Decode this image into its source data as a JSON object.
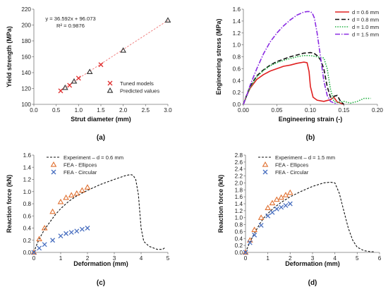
{
  "chart_data": [
    {
      "id": "a",
      "type": "scatter",
      "panel_label": "(a)",
      "xlabel": "Strut diameter (mm)",
      "ylabel": "Yield strength (MPa)",
      "xlim": [
        0,
        3
      ],
      "ylim": [
        100,
        220
      ],
      "xticks": [
        0,
        0.5,
        1,
        1.5,
        2,
        2.5,
        3
      ],
      "yticks": [
        100,
        120,
        140,
        160,
        180,
        200,
        220
      ],
      "grid": false,
      "legend": "bottom-right",
      "annotations": [
        "y = 36.592x + 96.073",
        "R² = 0.9876"
      ],
      "trendline": {
        "slope": 36.592,
        "intercept": 96.073,
        "x_range": [
          0.6,
          3
        ],
        "color": "#f08080"
      },
      "series": [
        {
          "name": "Tuned models",
          "marker": "x",
          "color": "#e03030",
          "x": [
            0.6,
            0.8,
            1.0,
            1.5
          ],
          "y": [
            117,
            124,
            133,
            150
          ]
        },
        {
          "name": "Predicted values",
          "marker": "triangle",
          "color": "#333333",
          "x": [
            0.7,
            0.9,
            1.25,
            2.0,
            3.0
          ],
          "y": [
            121,
            129,
            141,
            168,
            206
          ]
        }
      ]
    },
    {
      "id": "b",
      "type": "line",
      "panel_label": "(b)",
      "xlabel": "Engineering strain (-)",
      "ylabel": "Engineering stress (MPa)",
      "xlim": [
        0,
        0.2
      ],
      "ylim": [
        0,
        1.6
      ],
      "xticks": [
        0,
        0.05,
        0.1,
        0.15,
        0.2
      ],
      "yticks": [
        0,
        0.2,
        0.4,
        0.6,
        0.8,
        1.0,
        1.2,
        1.4,
        1.6
      ],
      "grid": false,
      "legend": "top-right",
      "series": [
        {
          "name": "d = 0.6 mm",
          "color": "#e02020",
          "dash": "solid",
          "x": [
            0,
            0.005,
            0.01,
            0.02,
            0.03,
            0.04,
            0.05,
            0.06,
            0.07,
            0.08,
            0.09,
            0.095,
            0.098,
            0.1,
            0.104,
            0.11,
            0.12,
            0.13,
            0.135,
            0.14,
            0.15
          ],
          "y": [
            0,
            0.15,
            0.27,
            0.42,
            0.5,
            0.56,
            0.6,
            0.64,
            0.66,
            0.69,
            0.71,
            0.7,
            0.55,
            0.3,
            0.12,
            0.07,
            0.05,
            0.08,
            0.12,
            0.04,
            0.0
          ]
        },
        {
          "name": "d = 0.8 mm",
          "color": "#111111",
          "dash": "long-dash",
          "x": [
            0,
            0.005,
            0.01,
            0.02,
            0.03,
            0.04,
            0.05,
            0.06,
            0.07,
            0.08,
            0.09,
            0.1,
            0.105,
            0.11,
            0.115,
            0.12,
            0.125,
            0.13,
            0.14,
            0.145,
            0.15
          ],
          "y": [
            0,
            0.16,
            0.3,
            0.48,
            0.58,
            0.66,
            0.72,
            0.76,
            0.8,
            0.83,
            0.86,
            0.87,
            0.86,
            0.82,
            0.75,
            0.6,
            0.3,
            0.12,
            0.15,
            0.05,
            0.0
          ]
        },
        {
          "name": "d = 1.0 mm",
          "color": "#20b040",
          "dash": "dot",
          "x": [
            0,
            0.005,
            0.01,
            0.02,
            0.03,
            0.04,
            0.05,
            0.06,
            0.07,
            0.08,
            0.09,
            0.1,
            0.11,
            0.12,
            0.125,
            0.13,
            0.135,
            0.14,
            0.15,
            0.16,
            0.17,
            0.18,
            0.19
          ],
          "y": [
            0,
            0.14,
            0.28,
            0.46,
            0.57,
            0.65,
            0.7,
            0.74,
            0.77,
            0.8,
            0.82,
            0.82,
            0.8,
            0.78,
            0.6,
            0.25,
            0.05,
            0.03,
            0.05,
            0.02,
            0.05,
            0.1,
            0.1
          ]
        },
        {
          "name": "d = 1.5 mm",
          "color": "#8a2be2",
          "dash": "dash-dot",
          "x": [
            0,
            0.005,
            0.01,
            0.02,
            0.03,
            0.04,
            0.05,
            0.06,
            0.07,
            0.08,
            0.09,
            0.095,
            0.1,
            0.103,
            0.106,
            0.11,
            0.115,
            0.12,
            0.125,
            0.13,
            0.14
          ],
          "y": [
            0,
            0.15,
            0.32,
            0.6,
            0.85,
            1.05,
            1.2,
            1.32,
            1.42,
            1.5,
            1.55,
            1.56,
            1.56,
            1.53,
            1.45,
            1.2,
            0.8,
            0.4,
            0.15,
            0.05,
            0.0
          ]
        }
      ]
    },
    {
      "id": "c",
      "type": "scatter",
      "panel_label": "(c)",
      "xlabel": "Deformation (mm)",
      "ylabel": "Reaction force (kN)",
      "xlim": [
        0,
        5
      ],
      "ylim": [
        0,
        1.6
      ],
      "xticks": [
        0,
        1,
        2,
        3,
        4,
        5
      ],
      "yticks": [
        0,
        0.2,
        0.4,
        0.6,
        0.8,
        1.0,
        1.2,
        1.4,
        1.6
      ],
      "grid": false,
      "legend": "top-left",
      "series": [
        {
          "name": "Experiment – d = 0.6 mm",
          "type": "line",
          "color": "#111111",
          "dash": "dash",
          "x": [
            0,
            0.1,
            0.2,
            0.4,
            0.6,
            0.8,
            1.0,
            1.3,
            1.6,
            2.0,
            2.5,
            3.0,
            3.4,
            3.6,
            3.7,
            3.8,
            3.9,
            4.0,
            4.1,
            4.3,
            4.6,
            4.8,
            4.9
          ],
          "y": [
            0,
            0.12,
            0.22,
            0.38,
            0.5,
            0.62,
            0.72,
            0.84,
            0.93,
            1.02,
            1.12,
            1.2,
            1.26,
            1.28,
            1.27,
            1.2,
            0.95,
            0.4,
            0.18,
            0.1,
            0.05,
            0.05,
            0.08
          ]
        },
        {
          "name": "FEA - Ellipces",
          "marker": "triangle",
          "color": "#e07030",
          "x": [
            0,
            0.2,
            0.4,
            0.7,
            1.0,
            1.2,
            1.4,
            1.6,
            1.8,
            2.0
          ],
          "y": [
            0,
            0.22,
            0.4,
            0.67,
            0.83,
            0.9,
            0.94,
            0.97,
            1.02,
            1.07
          ]
        },
        {
          "name": "FEA - Circular",
          "marker": "x",
          "color": "#4a70c0",
          "x": [
            0,
            0.2,
            0.4,
            0.7,
            1.0,
            1.2,
            1.4,
            1.6,
            1.8,
            2.0
          ],
          "y": [
            0,
            0.07,
            0.13,
            0.2,
            0.27,
            0.31,
            0.33,
            0.35,
            0.38,
            0.4
          ]
        }
      ]
    },
    {
      "id": "d",
      "type": "scatter",
      "panel_label": "(d)",
      "xlabel": "Deformation (mm)",
      "ylabel": "Reaction force (kN)",
      "xlim": [
        0,
        6
      ],
      "ylim": [
        0,
        2.8
      ],
      "xticks": [
        0,
        1,
        2,
        3,
        4,
        5,
        6
      ],
      "yticks": [
        0,
        0.2,
        0.4,
        0.6,
        0.8,
        1.0,
        1.2,
        1.4,
        1.6,
        1.8,
        2.0,
        2.2,
        2.4,
        2.6,
        2.8
      ],
      "grid": false,
      "legend": "top-left",
      "series": [
        {
          "name": "Experiment – d = 1.5 mm",
          "type": "line",
          "color": "#111111",
          "dash": "dash",
          "x": [
            0,
            0.2,
            0.4,
            0.6,
            0.8,
            1.0,
            1.3,
            1.6,
            2.0,
            2.5,
            3.0,
            3.5,
            3.8,
            4.0,
            4.2,
            4.4,
            4.6,
            4.8,
            5.0,
            5.3,
            5.6,
            5.8
          ],
          "y": [
            0,
            0.3,
            0.55,
            0.78,
            0.98,
            1.12,
            1.3,
            1.44,
            1.6,
            1.76,
            1.9,
            2.0,
            2.02,
            2.0,
            1.7,
            1.2,
            0.7,
            0.35,
            0.15,
            0.05,
            0.02,
            0.02
          ]
        },
        {
          "name": "FEA - Ellipces",
          "marker": "triangle",
          "color": "#e07030",
          "x": [
            0,
            0.2,
            0.4,
            0.7,
            1.0,
            1.2,
            1.4,
            1.6,
            1.8,
            2.0
          ],
          "y": [
            0,
            0.35,
            0.65,
            1.0,
            1.28,
            1.42,
            1.52,
            1.58,
            1.65,
            1.72
          ]
        },
        {
          "name": "FEA - Circular",
          "marker": "x",
          "color": "#4a70c0",
          "x": [
            0,
            0.2,
            0.4,
            0.7,
            1.0,
            1.2,
            1.4,
            1.6,
            1.8,
            2.0
          ],
          "y": [
            0,
            0.28,
            0.5,
            0.78,
            1.05,
            1.15,
            1.25,
            1.3,
            1.35,
            1.4
          ]
        }
      ]
    }
  ]
}
